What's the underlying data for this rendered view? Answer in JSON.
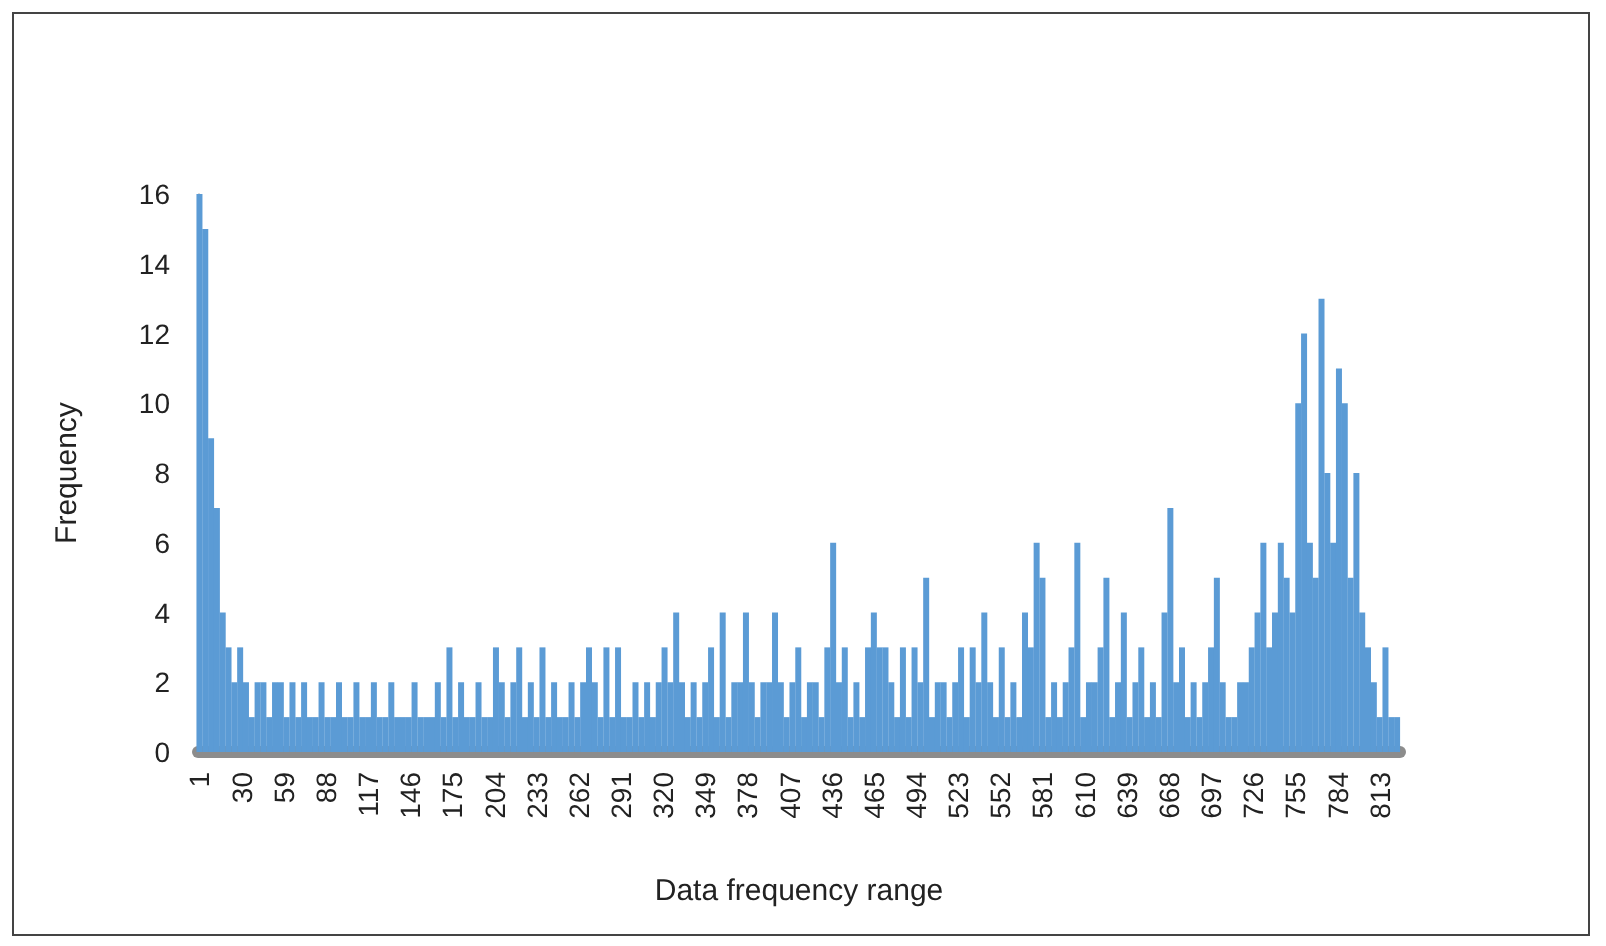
{
  "chart_data": {
    "type": "bar",
    "xlabel": "Data frequency range",
    "ylabel": "Frequency",
    "color": "#5b9bd5",
    "grid": false,
    "x": [
      1,
      5,
      9,
      13,
      17,
      21,
      25,
      29,
      33,
      37,
      41,
      45,
      49,
      53,
      57,
      61,
      65,
      69,
      73,
      77,
      81,
      85,
      89,
      93,
      97,
      101,
      105,
      109,
      113,
      117,
      121,
      125,
      129,
      133,
      137,
      141,
      145,
      149,
      153,
      157,
      161,
      165,
      169,
      173,
      177,
      181,
      185,
      189,
      193,
      197,
      201,
      205,
      209,
      213,
      217,
      221,
      225,
      229,
      233,
      237,
      241,
      245,
      249,
      253,
      257,
      261,
      265,
      269,
      273,
      277,
      281,
      285,
      289,
      293,
      297,
      301,
      305,
      309,
      313,
      317,
      321,
      325,
      329,
      333,
      337,
      341,
      345,
      349,
      353,
      357,
      361,
      365,
      369,
      373,
      377,
      381,
      385,
      389,
      393,
      397,
      401,
      405,
      409,
      413,
      417,
      421,
      425,
      429,
      433,
      437,
      441,
      445,
      449,
      453,
      457,
      461,
      465,
      469,
      473,
      477,
      481,
      485,
      489,
      493,
      497,
      501,
      505,
      509,
      513,
      517,
      521,
      525,
      529,
      533,
      537,
      541,
      545,
      549,
      553,
      557,
      561,
      565,
      569,
      573,
      577,
      581,
      585,
      589,
      593,
      597,
      601,
      605,
      609,
      613,
      617,
      621,
      625,
      629,
      633,
      637,
      641,
      645,
      649,
      653,
      657,
      661,
      665,
      669,
      673,
      677,
      681,
      685,
      689,
      693,
      697,
      701,
      705,
      709,
      713,
      717,
      721,
      725,
      729,
      733,
      737,
      741,
      745,
      749,
      753,
      757,
      761,
      765,
      769,
      773,
      777,
      781,
      785,
      789,
      793,
      797,
      801,
      805,
      809,
      813,
      817,
      821,
      825
    ],
    "values": [
      16,
      15,
      9,
      7,
      4,
      3,
      2,
      3,
      2,
      1,
      2,
      2,
      1,
      2,
      2,
      1,
      2,
      1,
      2,
      1,
      1,
      2,
      1,
      1,
      2,
      1,
      1,
      2,
      1,
      1,
      2,
      1,
      1,
      2,
      1,
      1,
      1,
      2,
      1,
      1,
      1,
      2,
      1,
      3,
      1,
      2,
      1,
      1,
      2,
      1,
      1,
      3,
      2,
      1,
      2,
      3,
      1,
      2,
      1,
      3,
      1,
      2,
      1,
      1,
      2,
      1,
      2,
      3,
      2,
      1,
      3,
      1,
      3,
      1,
      1,
      2,
      1,
      2,
      1,
      2,
      3,
      2,
      4,
      2,
      1,
      2,
      1,
      2,
      3,
      1,
      4,
      1,
      2,
      2,
      4,
      2,
      1,
      2,
      2,
      4,
      2,
      1,
      2,
      3,
      1,
      2,
      2,
      1,
      3,
      6,
      2,
      3,
      1,
      2,
      1,
      3,
      4,
      3,
      3,
      2,
      1,
      3,
      1,
      3,
      2,
      5,
      1,
      2,
      2,
      1,
      2,
      3,
      1,
      3,
      2,
      4,
      2,
      1,
      3,
      1,
      2,
      1,
      4,
      3,
      6,
      5,
      1,
      2,
      1,
      2,
      3,
      6,
      1,
      2,
      2,
      3,
      5,
      1,
      2,
      4,
      1,
      2,
      3,
      1,
      2,
      1,
      4,
      7,
      2,
      3,
      1,
      2,
      1,
      2,
      3,
      5,
      2,
      1,
      1,
      2,
      2,
      3,
      4,
      6,
      3,
      4,
      6,
      5,
      4,
      10,
      12,
      6,
      5,
      13,
      8,
      6,
      11,
      10,
      5,
      8,
      4,
      3,
      2,
      1,
      3,
      1,
      1
    ],
    "xlim": [
      0,
      827
    ],
    "xticks": [
      1,
      30,
      59,
      88,
      117,
      146,
      175,
      204,
      233,
      262,
      291,
      320,
      349,
      378,
      407,
      436,
      465,
      494,
      523,
      552,
      581,
      610,
      639,
      668,
      697,
      726,
      755,
      784,
      813
    ],
    "ylim": [
      0,
      16
    ],
    "yticks": [
      0,
      2,
      4,
      6,
      8,
      10,
      12,
      14,
      16
    ]
  }
}
